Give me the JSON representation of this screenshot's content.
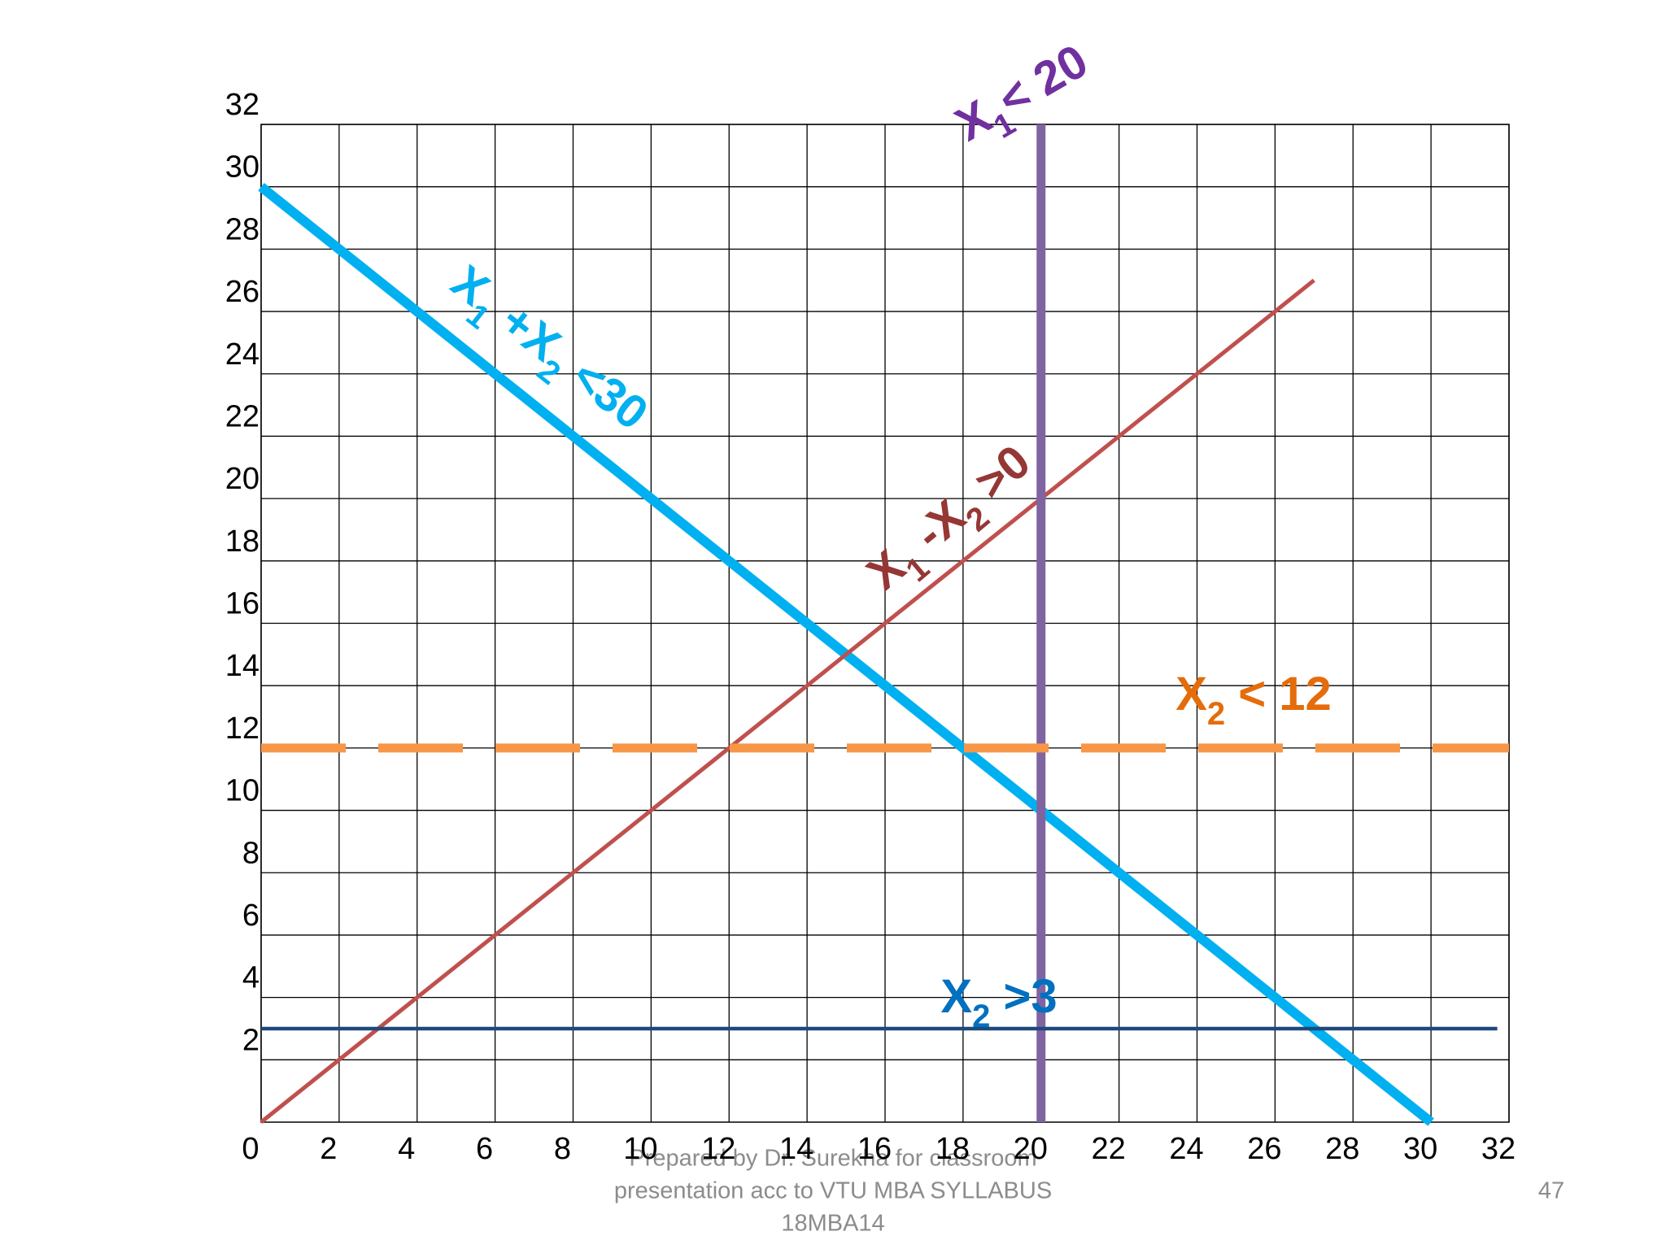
{
  "chart_data": {
    "type": "line",
    "xlim": [
      0,
      32
    ],
    "ylim": [
      0,
      32
    ],
    "xticks": [
      0,
      2,
      4,
      6,
      8,
      10,
      12,
      14,
      16,
      18,
      20,
      22,
      24,
      26,
      28,
      30,
      32
    ],
    "yticks": [
      2,
      4,
      6,
      8,
      10,
      12,
      14,
      16,
      18,
      20,
      22,
      24,
      26,
      28,
      30,
      32
    ],
    "grid": true,
    "series": [
      {
        "color": "#00b0f0",
        "x": [
          0,
          30
        ],
        "values": [
          30,
          0
        ]
      },
      {
        "color": "#c0504d",
        "x": [
          0,
          27
        ],
        "values": [
          0,
          27
        ]
      },
      {
        "color": "#8064a2",
        "x": [
          20,
          20
        ],
        "values": [
          0,
          32
        ]
      },
      {
        "color": "#f79646",
        "x": [
          0,
          32
        ],
        "values": [
          12,
          12
        ],
        "style": "dashed"
      },
      {
        "color": "#1f497d",
        "x": [
          0,
          31.7
        ],
        "values": [
          3,
          3
        ]
      }
    ],
    "annotations": [
      {
        "parts": [
          "X",
          "1",
          "< 20"
        ],
        "color": "#7030a0"
      },
      {
        "parts": [
          "X",
          "1",
          " +X",
          "2",
          " <30"
        ],
        "color": "#00b0f0"
      },
      {
        "parts": [
          "X",
          "1",
          " -X",
          "2",
          " >0"
        ],
        "color": "#953735"
      },
      {
        "parts": [
          "X",
          "2",
          " < 12"
        ],
        "color": "#e46c0a"
      },
      {
        "parts": [
          "X",
          "2",
          " >3"
        ],
        "color": "#0070c0"
      }
    ]
  },
  "footer": {
    "note_lines": [
      "Prepared by Dr. Surekha for classroom",
      "presentation acc to VTU MBA SYLLABUS",
      "18MBA14"
    ],
    "page_number": "47"
  }
}
